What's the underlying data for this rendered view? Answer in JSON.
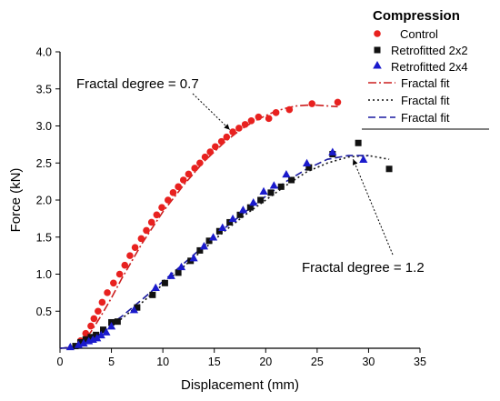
{
  "chart_data": {
    "type": "scatter",
    "xlabel": "Displacement (mm)",
    "ylabel": "Force (kN)",
    "xlim": [
      0,
      35
    ],
    "ylim": [
      0,
      4.0
    ],
    "xticks": [
      "0",
      "5",
      "10",
      "15",
      "20",
      "25",
      "30",
      "35"
    ],
    "yticks": [
      "0.5",
      "1.0",
      "1.5",
      "2.0",
      "2.5",
      "3.0",
      "3.5",
      "4.0"
    ],
    "grid": false,
    "legend": {
      "title": "Compression",
      "position": "top-right",
      "labels": [
        "Control",
        "Retrofitted 2x2",
        "Retrofitted 2x4",
        "Fractal fit",
        "Fractal fit",
        "Fractal fit"
      ]
    },
    "series": [
      {
        "name": "Control",
        "kind": "points",
        "marker": "circle",
        "color": "#e8211f",
        "x": [
          2.0,
          2.5,
          3.0,
          3.3,
          3.7,
          4.1,
          4.6,
          5.2,
          5.8,
          6.3,
          6.8,
          7.3,
          7.9,
          8.4,
          8.9,
          9.4,
          9.9,
          10.5,
          11.0,
          11.5,
          12.0,
          12.5,
          13.1,
          13.6,
          14.1,
          14.6,
          15.1,
          15.7,
          16.2,
          16.8,
          17.4,
          18.0,
          18.6,
          19.3,
          20.3,
          21.0,
          22.3,
          24.5,
          27.0
        ],
        "y": [
          0.1,
          0.2,
          0.3,
          0.4,
          0.5,
          0.62,
          0.75,
          0.88,
          1.0,
          1.12,
          1.25,
          1.36,
          1.48,
          1.59,
          1.7,
          1.8,
          1.9,
          2.0,
          2.1,
          2.18,
          2.27,
          2.35,
          2.43,
          2.5,
          2.58,
          2.65,
          2.72,
          2.79,
          2.85,
          2.92,
          2.97,
          3.02,
          3.07,
          3.12,
          3.1,
          3.18,
          3.22,
          3.3,
          3.32
        ]
      },
      {
        "name": "Retrofitted 2x2",
        "kind": "points",
        "marker": "square",
        "color": "#111111",
        "x": [
          1.5,
          2.0,
          2.5,
          3.0,
          3.5,
          4.2,
          5.0,
          5.6,
          7.5,
          9.0,
          10.2,
          11.5,
          12.7,
          13.6,
          14.5,
          15.5,
          16.5,
          17.5,
          18.5,
          19.5,
          20.5,
          21.5,
          22.5,
          24.2,
          26.5,
          29.0,
          32.0
        ],
        "y": [
          0.03,
          0.08,
          0.12,
          0.15,
          0.18,
          0.25,
          0.35,
          0.36,
          0.55,
          0.72,
          0.88,
          1.02,
          1.18,
          1.32,
          1.45,
          1.58,
          1.7,
          1.8,
          1.9,
          2.0,
          2.1,
          2.18,
          2.27,
          2.44,
          2.62,
          2.77,
          2.42
        ]
      },
      {
        "name": "Retrofitted 2x4",
        "kind": "points",
        "marker": "triangle",
        "color": "#1a1acc",
        "x": [
          1.0,
          1.8,
          2.3,
          2.8,
          3.2,
          3.6,
          4.0,
          4.5,
          5.0,
          7.2,
          9.3,
          10.8,
          11.8,
          13.0,
          14.0,
          14.9,
          15.8,
          16.8,
          17.8,
          18.8,
          19.8,
          20.8,
          22.0,
          24.0,
          26.5,
          29.5
        ],
        "y": [
          0.02,
          0.05,
          0.07,
          0.1,
          0.12,
          0.14,
          0.18,
          0.22,
          0.3,
          0.52,
          0.82,
          0.98,
          1.1,
          1.22,
          1.38,
          1.5,
          1.63,
          1.75,
          1.87,
          1.97,
          2.12,
          2.2,
          2.35,
          2.5,
          2.65,
          2.55
        ]
      },
      {
        "name": "Fractal fit",
        "kind": "line",
        "dash": "dashdot",
        "color": "#cc1f1f",
        "x": [
          0,
          1,
          2,
          3,
          4,
          5,
          6,
          7,
          8,
          9,
          10,
          11,
          12,
          13,
          14,
          15,
          16,
          17,
          18,
          19,
          20,
          21,
          22,
          23,
          24,
          25,
          26,
          27
        ],
        "y": [
          0.0,
          0.01,
          0.06,
          0.22,
          0.44,
          0.68,
          0.94,
          1.18,
          1.42,
          1.63,
          1.84,
          2.02,
          2.2,
          2.36,
          2.52,
          2.65,
          2.78,
          2.89,
          2.99,
          3.07,
          3.14,
          3.2,
          3.24,
          3.27,
          3.28,
          3.28,
          3.27,
          3.26
        ]
      },
      {
        "name": "Fractal fit",
        "kind": "line",
        "dash": "dotted",
        "color": "#111111",
        "x": [
          0,
          1,
          2,
          3,
          4,
          5,
          6,
          8,
          10,
          12,
          14,
          16,
          18,
          20,
          22,
          24,
          26,
          28,
          30,
          32
        ],
        "y": [
          0.0,
          0.01,
          0.05,
          0.12,
          0.2,
          0.3,
          0.4,
          0.62,
          0.86,
          1.1,
          1.34,
          1.58,
          1.8,
          2.0,
          2.2,
          2.38,
          2.5,
          2.58,
          2.6,
          2.55
        ]
      },
      {
        "name": "Fractal fit",
        "kind": "line",
        "dash": "dashed",
        "color": "#1a1aa0",
        "x": [
          0,
          1,
          2,
          3,
          4,
          5,
          6,
          8,
          10,
          12,
          14,
          16,
          18,
          20,
          22,
          24,
          26,
          28,
          30
        ],
        "y": [
          0.0,
          0.01,
          0.06,
          0.14,
          0.22,
          0.33,
          0.43,
          0.66,
          0.9,
          1.14,
          1.38,
          1.62,
          1.84,
          2.05,
          2.25,
          2.42,
          2.55,
          2.6,
          2.6
        ]
      }
    ],
    "annotations": [
      {
        "text": "Fractal degree = 0.7",
        "arrow_to": [
          16.5,
          2.95
        ]
      },
      {
        "text": "Fractal degree = 1.2",
        "arrow_to": [
          28.5,
          2.55
        ]
      }
    ]
  }
}
